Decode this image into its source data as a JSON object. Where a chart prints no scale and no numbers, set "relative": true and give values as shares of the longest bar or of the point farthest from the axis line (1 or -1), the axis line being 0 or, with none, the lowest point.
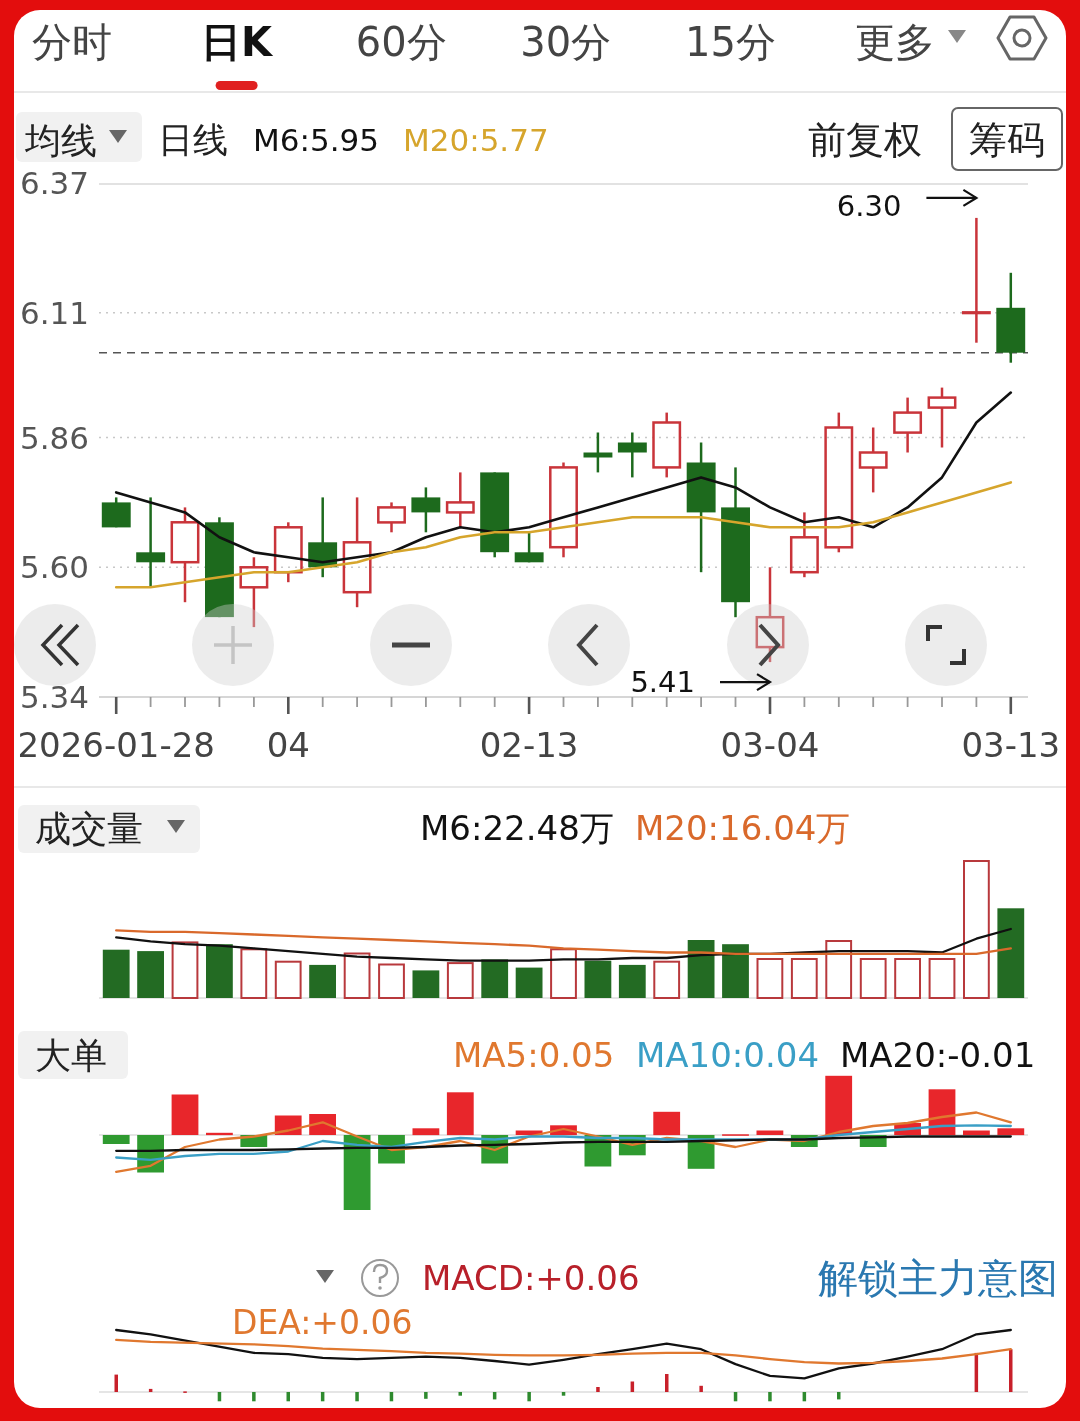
{
  "chart_data": [
    {
      "type": "other",
      "annotations": [
        "分时",
        "日K",
        "60分",
        "30分",
        "15分",
        "更多"
      ]
    },
    {
      "type": "candlestick",
      "title": "日线",
      "categories": [
        "2026-01-28",
        null,
        null,
        null,
        null,
        "04",
        null,
        null,
        null,
        null,
        null,
        null,
        "02-13",
        null,
        null,
        null,
        null,
        null,
        null,
        "03-04",
        null,
        null,
        null,
        null,
        null,
        null,
        "03-13"
      ],
      "ohlc": [
        [
          5.73,
          5.74,
          5.68,
          5.68
        ],
        [
          5.63,
          5.74,
          5.56,
          5.61
        ],
        [
          5.61,
          5.72,
          5.53,
          5.69
        ],
        [
          5.69,
          5.7,
          5.5,
          5.5
        ],
        [
          5.56,
          5.62,
          5.48,
          5.6
        ],
        [
          5.59,
          5.69,
          5.57,
          5.68
        ],
        [
          5.65,
          5.74,
          5.58,
          5.6
        ],
        [
          5.55,
          5.74,
          5.52,
          5.65
        ],
        [
          5.69,
          5.73,
          5.67,
          5.72
        ],
        [
          5.74,
          5.76,
          5.67,
          5.71
        ],
        [
          5.71,
          5.79,
          5.68,
          5.73
        ],
        [
          5.79,
          5.79,
          5.62,
          5.63
        ],
        [
          5.63,
          5.67,
          5.61,
          5.61
        ],
        [
          5.64,
          5.81,
          5.62,
          5.8
        ],
        [
          5.83,
          5.87,
          5.79,
          5.82
        ],
        [
          5.85,
          5.87,
          5.78,
          5.83
        ],
        [
          5.8,
          5.91,
          5.78,
          5.89
        ],
        [
          5.81,
          5.85,
          5.59,
          5.71
        ],
        [
          5.72,
          5.8,
          5.5,
          5.53
        ],
        [
          5.44,
          5.6,
          5.41,
          5.5
        ],
        [
          5.59,
          5.71,
          5.58,
          5.66
        ],
        [
          5.64,
          5.91,
          5.63,
          5.88
        ],
        [
          5.8,
          5.88,
          5.75,
          5.83
        ],
        [
          5.87,
          5.94,
          5.83,
          5.91
        ],
        [
          5.92,
          5.96,
          5.84,
          5.94
        ],
        [
          6.11,
          6.3,
          6.05,
          6.11
        ],
        [
          6.12,
          6.19,
          6.01,
          6.03
        ]
      ],
      "colors": [
        "#1d6a1d",
        "#1d6a1d",
        "#c9343a",
        "#1d6a1d",
        "#c9343a",
        "#c9343a",
        "#1d6a1d",
        "#c9343a",
        "#c9343a",
        "#1d6a1d",
        "#c9343a",
        "#1d6a1d",
        "#1d6a1d",
        "#c9343a",
        "#1d6a1d",
        "#1d6a1d",
        "#c9343a",
        "#1d6a1d",
        "#1d6a1d",
        "#c9343a",
        "#c9343a",
        "#c9343a",
        "#c9343a",
        "#c9343a",
        "#c9343a",
        "#c9343a",
        "#1d6a1d"
      ],
      "ylim": [
        5.34,
        6.37
      ],
      "yticks": [
        6.37,
        6.11,
        5.86,
        {
          "value": 5.6,
          "label": "5.60"
        },
        5.34
      ],
      "grid": "y",
      "legend": "top",
      "series": [
        {
          "name": "M6:5.95",
          "type": "line",
          "color": "#111111",
          "values": [
            5.75,
            5.73,
            5.71,
            5.66,
            5.63,
            5.62,
            5.61,
            5.62,
            5.63,
            5.66,
            5.68,
            5.67,
            5.68,
            5.7,
            5.72,
            5.74,
            5.76,
            5.78,
            5.76,
            5.72,
            5.69,
            5.7,
            5.68,
            5.72,
            5.78,
            5.89,
            5.95
          ]
        },
        {
          "name": "M20:5.77",
          "type": "line",
          "color": "#d6a52c",
          "values": [
            5.56,
            5.56,
            5.57,
            5.58,
            5.59,
            5.59,
            5.6,
            5.61,
            5.63,
            5.64,
            5.66,
            5.67,
            5.67,
            5.68,
            5.69,
            5.7,
            5.7,
            5.7,
            5.69,
            5.68,
            5.68,
            5.68,
            5.69,
            5.71,
            5.73,
            5.75,
            5.77
          ]
        }
      ],
      "ref_lines": [
        {
          "axis": "y",
          "value": 6.03,
          "line_style": "dashed",
          "color": "#555555"
        }
      ],
      "annotations": [
        "均线",
        "前复权",
        "筹码",
        "6.30",
        {
          "text": "5.41",
          "x": "03-04",
          "y": 5.41
        }
      ]
    },
    {
      "type": "bar",
      "title": "成交量",
      "categories": [
        null,
        null,
        null,
        null,
        null,
        null,
        null,
        null,
        null,
        null,
        null,
        null,
        null,
        null,
        null,
        null,
        null,
        null,
        null,
        null,
        null,
        null,
        null,
        null,
        null,
        null,
        null
      ],
      "relative": true,
      "tick_labels": false,
      "legend": "top",
      "series": [
        {
          "colors": [
            "#236b23",
            "#236b23",
            "#b8393c",
            "#236b23",
            "#b8393c",
            "#b8393c",
            "#236b23",
            "#b8393c",
            "#b8393c",
            "#236b23",
            "#b8393c",
            "#236b23",
            "#236b23",
            "#b8393c",
            "#236b23",
            "#236b23",
            "#b8393c",
            "#236b23",
            "#236b23",
            "#b8393c",
            "#b8393c",
            "#b8393c",
            "#b8393c",
            "#b8393c",
            "#b8393c",
            "#b8393c",
            "#236b23"
          ],
          "values": [
            0.35,
            0.34,
            0.41,
            0.39,
            0.36,
            0.27,
            0.24,
            0.33,
            0.25,
            0.2,
            0.26,
            0.28,
            0.22,
            0.36,
            0.27,
            0.24,
            0.27,
            0.42,
            0.39,
            0.29,
            0.29,
            0.42,
            0.29,
            0.29,
            0.29,
            1,
            0.65
          ]
        },
        {
          "name": "M6:22.48万",
          "type": "line",
          "color": "#111111",
          "values": [
            0.44,
            0.41,
            0.39,
            0.38,
            0.36,
            0.34,
            0.32,
            0.3,
            0.29,
            0.28,
            0.27,
            0.27,
            0.27,
            0.28,
            0.28,
            0.29,
            0.29,
            0.31,
            0.32,
            0.32,
            0.33,
            0.34,
            0.34,
            0.34,
            0.33,
            0.43,
            0.5
          ]
        },
        {
          "name": "M20:16.04万",
          "type": "line",
          "color": "#d9692b",
          "values": [
            0.49,
            0.48,
            0.48,
            0.47,
            0.46,
            0.45,
            0.44,
            0.43,
            0.42,
            0.41,
            0.4,
            0.39,
            0.38,
            0.36,
            0.35,
            0.34,
            0.33,
            0.33,
            0.32,
            0.32,
            0.32,
            0.32,
            0.32,
            0.32,
            0.32,
            0.32,
            0.36
          ]
        }
      ]
    },
    {
      "type": "bar",
      "title": "大单",
      "categories": [
        null,
        null,
        null,
        null,
        null,
        null,
        null,
        null,
        null,
        null,
        null,
        null,
        null,
        null,
        null,
        null,
        null,
        null,
        null,
        null,
        null,
        null,
        null,
        null,
        null,
        null,
        null
      ],
      "relative": true,
      "tick_labels": false,
      "legend": "top",
      "series": [
        {
          "colors": [
            "#2f9a30",
            "#2f9a30",
            "#e8262b",
            "#e8262b",
            "#2f9a30",
            "#e8262b",
            "#e8262b",
            "#2f9a30",
            "#2f9a30",
            "#e8262b",
            "#e8262b",
            "#2f9a30",
            "#e8262b",
            "#e8262b",
            "#2f9a30",
            "#2f9a30",
            "#e8262b",
            "#2f9a30",
            "#e8262b",
            "#e8262b",
            "#2f9a30",
            "#e8262b",
            "#2f9a30",
            "#e8262b",
            "#e8262b",
            "#e8262b",
            "#e8262b"
          ],
          "values": [
            -0.12,
            -0.5,
            0.54,
            0.03,
            -0.16,
            0.26,
            0.28,
            -1,
            -0.38,
            0.09,
            0.57,
            -0.38,
            0.06,
            0.13,
            -0.42,
            -0.27,
            0.31,
            -0.45,
            0,
            0.06,
            -0.16,
            0.79,
            -0.16,
            0.16,
            0.61,
            0.06,
            0.09
          ]
        },
        {
          "name": "MA5:0.05",
          "type": "line",
          "color": "#e0782f",
          "values": [
            -0.49,
            -0.41,
            -0.16,
            -0.06,
            -0.02,
            0.06,
            0.17,
            -0.02,
            -0.2,
            -0.16,
            -0.08,
            -0.2,
            -0.02,
            0.08,
            -0.02,
            -0.13,
            -0.04,
            -0.08,
            -0.16,
            -0.06,
            -0.08,
            0.04,
            0.12,
            0.16,
            0.24,
            0.3,
            0.17
          ]
        },
        {
          "name": "MA10:0.04",
          "type": "line",
          "color": "#3a9fc6",
          "values": [
            -0.3,
            -0.33,
            -0.28,
            -0.25,
            -0.25,
            -0.22,
            -0.08,
            -0.13,
            -0.16,
            -0.09,
            -0.04,
            -0.06,
            -0.02,
            -0.02,
            -0.04,
            -0.04,
            -0.06,
            -0.06,
            -0.06,
            -0.06,
            -0.06,
            0,
            0.04,
            0.08,
            0.12,
            0.13,
            0.12
          ]
        },
        {
          "name": "MA20:-0.01",
          "type": "line",
          "color": "#111111",
          "values": [
            -0.21,
            -0.21,
            -0.2,
            -0.2,
            -0.2,
            -0.19,
            -0.18,
            -0.17,
            -0.17,
            -0.16,
            -0.14,
            -0.13,
            -0.12,
            -0.1,
            -0.09,
            -0.09,
            -0.09,
            -0.08,
            -0.07,
            -0.06,
            -0.06,
            -0.04,
            -0.03,
            -0.02,
            -0.02,
            -0.02,
            -0.02
          ]
        }
      ]
    },
    {
      "type": "bar",
      "categories": [
        null,
        null,
        null,
        null,
        null,
        null,
        null,
        null,
        null,
        null,
        null,
        null,
        null,
        null,
        null,
        null,
        null,
        null,
        null,
        null,
        null,
        null,
        null,
        null,
        null,
        null,
        null
      ],
      "relative": true,
      "tick_labels": false,
      "legend": "top",
      "series": [
        {
          "name": "MACD:+0.06",
          "color": "#b8202a",
          "colors": [
            "#c8202a",
            "#c8202a",
            "#c8202a",
            "#2e8a2e",
            "#2e8a2e",
            "#2e8a2e",
            "#2e8a2e",
            "#2e8a2e",
            "#2e8a2e",
            "#2e8a2e",
            "#2e8a2e",
            "#2e8a2e",
            "#2e8a2e",
            "#2e8a2e",
            "#c8202a",
            "#c8202a",
            "#c8202a",
            "#c8202a",
            "#2e8a2e",
            "#2e8a2e",
            "#2e8a2e",
            "#2e8a2e",
            null,
            null,
            null,
            "#c8202a",
            "#c8202a"
          ],
          "values": [
            0.28,
            0.05,
            0.01,
            -0.15,
            -0.15,
            -0.15,
            -0.15,
            -0.15,
            -0.15,
            -0.11,
            -0.06,
            -0.12,
            -0.15,
            -0.06,
            0.08,
            0.17,
            0.29,
            0.1,
            -0.15,
            -0.15,
            -0.15,
            -0.12,
            null,
            null,
            null,
            0.63,
            0.69
          ]
        },
        {
          "type": "line",
          "color": "#111111",
          "values": [
            1.0,
            0.93,
            null,
            null,
            0.63,
            0.61,
            0.55,
            0.53,
            0.55,
            0.57,
            0.55,
            0.5,
            0.44,
            0.52,
            0.61,
            0.69,
            0.78,
            0.69,
            0.45,
            0.26,
            0.22,
            0.38,
            0.46,
            0.57,
            0.69,
            0.93,
            1.0
          ]
        },
        {
          "name": "DEA:+0.06",
          "type": "line",
          "color": "#e0782f",
          "values": [
            0.84,
            0.81,
            null,
            null,
            0.77,
            0.74,
            0.7,
            0.68,
            0.66,
            0.63,
            0.62,
            0.6,
            0.59,
            0.59,
            0.6,
            0.62,
            0.63,
            0.63,
            0.59,
            0.53,
            0.48,
            0.46,
            0.47,
            0.5,
            0.54,
            0.61,
            0.69
          ]
        }
      ],
      "annotations": [
        "解锁主力意图"
      ]
    }
  ]
}
